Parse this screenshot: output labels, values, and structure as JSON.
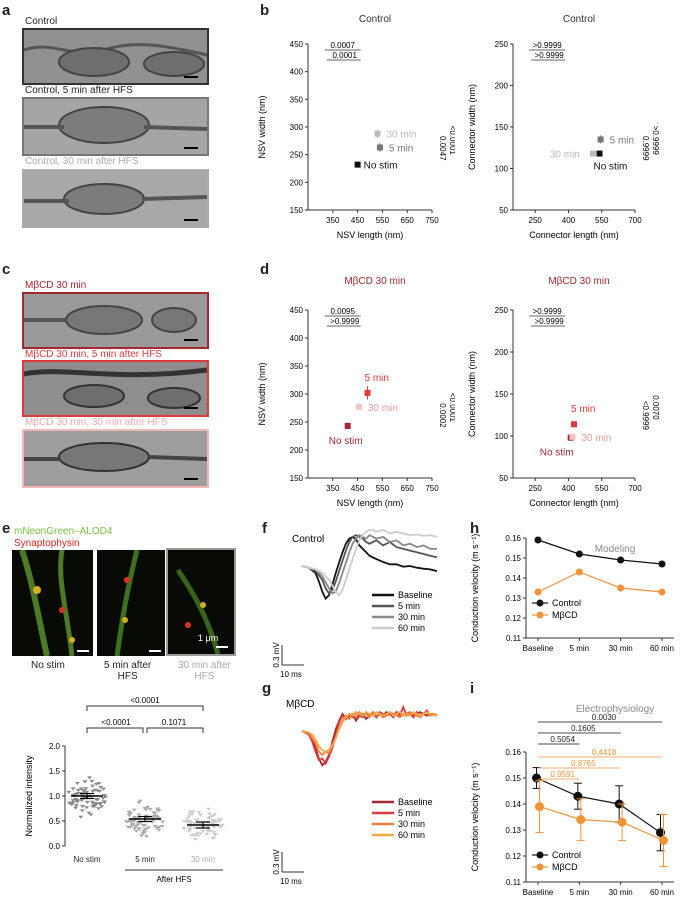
{
  "panels": {
    "a": "a",
    "b": "b",
    "c": "c",
    "d": "d",
    "e": "e",
    "f": "f",
    "g": "g",
    "h": "h",
    "i": "i"
  },
  "panel_a": {
    "labels": [
      "Control",
      "Control, 5 min after HFS",
      "Control, 30 min after HFS"
    ],
    "label_colors": [
      "#555555",
      "#666666",
      "#aaaaaa"
    ],
    "border_colors": [
      "#333333",
      "#777777",
      "#aaaaaa"
    ]
  },
  "panel_c": {
    "labels": [
      "MβCD 30 min",
      "MβCD 30 min, 5 min after HFS",
      "MβCD 30 min, 30 min after HFS"
    ],
    "label_colors": [
      "#a0282e",
      "#e03a3a",
      "#f0a8a8"
    ],
    "border_colors": [
      "#a0282e",
      "#e03a3a",
      "#f2b8b8"
    ]
  },
  "panel_e_images": {
    "legend": [
      "mNeonGreen–ALOD4",
      "Synaptophysin"
    ],
    "legend_colors": [
      "#7ac143",
      "#e02020"
    ],
    "captions": [
      "No stim",
      "5 min after\nHFS",
      "30 min after\nHFS"
    ],
    "caption_colors": [
      "#222222",
      "#222222",
      "#aaaaaa"
    ],
    "scale": "1 μm"
  },
  "chart_data": [
    {
      "id": "b-left",
      "type": "scatter",
      "title": "Control",
      "xlabel": "NSV length (nm)",
      "ylabel": "NSV width (nm)",
      "xlim": [
        250,
        750
      ],
      "ylim": [
        150,
        450
      ],
      "xticks": [
        350,
        450,
        550,
        650,
        750
      ],
      "yticks": [
        150,
        200,
        250,
        300,
        350,
        400,
        450
      ],
      "series": [
        {
          "name": "No stim",
          "x": 450,
          "y": 232,
          "xerr": 8,
          "yerr": 5,
          "color": "#111111"
        },
        {
          "name": "5 min",
          "x": 540,
          "y": 263,
          "xerr": 10,
          "yerr": 8,
          "color": "#777777"
        },
        {
          "name": "30 min",
          "x": 530,
          "y": 288,
          "xerr": 12,
          "yerr": 8,
          "color": "#bbbbbb"
        }
      ],
      "stats_top": [
        "0.0007",
        "0.0001"
      ],
      "stats_side": [
        "<0.0001",
        "0.0047"
      ]
    },
    {
      "id": "b-right",
      "type": "scatter",
      "title": "Control",
      "xlabel": "Connector length (nm)",
      "ylabel": "Connector width (nm)",
      "xlim": [
        150,
        700
      ],
      "ylim": [
        50,
        250
      ],
      "xticks": [
        250,
        400,
        550,
        700
      ],
      "yticks": [
        50,
        100,
        150,
        200,
        250
      ],
      "series": [
        {
          "name": "No stim",
          "x": 540,
          "y": 118,
          "xerr": 10,
          "yerr": 3,
          "color": "#111111"
        },
        {
          "name": "5 min",
          "x": 545,
          "y": 135,
          "xerr": 10,
          "yerr": 5,
          "color": "#777777"
        },
        {
          "name": "30 min",
          "x": 510,
          "y": 118,
          "xerr": 10,
          "yerr": 3,
          "color": "#bbbbbb"
        }
      ],
      "stats_top": [
        ">0.9999",
        ">0.9999"
      ],
      "stats_side": [
        ">0.9999",
        "0.9999"
      ]
    },
    {
      "id": "d-left",
      "type": "scatter",
      "title": "MβCD 30 min",
      "xlabel": "NSV length (nm)",
      "ylabel": "NSV width (nm)",
      "xlim": [
        250,
        750
      ],
      "ylim": [
        150,
        450
      ],
      "xticks": [
        350,
        450,
        550,
        650,
        750
      ],
      "yticks": [
        150,
        200,
        250,
        300,
        350,
        400,
        450
      ],
      "series": [
        {
          "name": "No stim",
          "x": 410,
          "y": 243,
          "xerr": 8,
          "yerr": 6,
          "color": "#a0282e"
        },
        {
          "name": "5 min",
          "x": 490,
          "y": 302,
          "xerr": 12,
          "yerr": 12,
          "color": "#e03a3a"
        },
        {
          "name": "30 min",
          "x": 455,
          "y": 277,
          "xerr": 8,
          "yerr": 6,
          "color": "#f2c4c4"
        }
      ],
      "stats_top": [
        "0.0095",
        ">0.9999"
      ],
      "stats_side": [
        "<0.0001",
        "0.0002"
      ]
    },
    {
      "id": "d-right",
      "type": "scatter",
      "title": "MβCD 30 min",
      "xlabel": "Connector length (nm)",
      "ylabel": "Connector width (nm)",
      "xlim": [
        150,
        700
      ],
      "ylim": [
        50,
        250
      ],
      "xticks": [
        250,
        400,
        550,
        700
      ],
      "yticks": [
        50,
        100,
        150,
        200,
        250
      ],
      "series": [
        {
          "name": "No stim",
          "x": 410,
          "y": 98,
          "xerr": 8,
          "yerr": 3,
          "color": "#a0282e"
        },
        {
          "name": "5 min",
          "x": 425,
          "y": 114,
          "xerr": 10,
          "yerr": 4,
          "color": "#e03a3a"
        },
        {
          "name": "30 min",
          "x": 418,
          "y": 99,
          "xerr": 8,
          "yerr": 3,
          "color": "#f2c4c4"
        }
      ],
      "stats_top": [
        ">0.9999",
        ">0.9999"
      ],
      "stats_side": [
        "0.0070",
        "<0.9999"
      ]
    },
    {
      "id": "e-bottom",
      "type": "scatter",
      "ylabel": "Normalized intensity",
      "ylim": [
        0,
        2.0
      ],
      "yticks": [
        0,
        0.5,
        1.0,
        1.5,
        2.0
      ],
      "categories": [
        "No stim",
        "5 min",
        "30 min"
      ],
      "category_colors": [
        "#888888",
        "#aaaaaa",
        "#cccccc"
      ],
      "label_colors": [
        "#222222",
        "#222222",
        "#aaaaaa"
      ],
      "means": [
        1.0,
        0.54,
        0.42
      ],
      "sems": [
        0.05,
        0.05,
        0.06
      ],
      "group_label": "After HFS",
      "comparisons": [
        {
          "from": 0,
          "to": 2,
          "p": "<0.0001"
        },
        {
          "from": 0,
          "to": 1,
          "p": "<0.0001"
        },
        {
          "from": 1,
          "to": 2,
          "p": "0.1071"
        }
      ]
    },
    {
      "id": "f",
      "type": "line",
      "title": "Control",
      "scale_y": "0.3 mV",
      "scale_x": "10 ms",
      "series": [
        {
          "name": "Baseline",
          "color": "#111111",
          "x": [
            0,
            2,
            4,
            5,
            6,
            7,
            8,
            9,
            10,
            11,
            12,
            13,
            14,
            15,
            16,
            17,
            18,
            19,
            20,
            22,
            24,
            26,
            28,
            30,
            32,
            34,
            36,
            38,
            40
          ],
          "y": [
            0,
            -0.05,
            -0.2,
            -0.45,
            -0.75,
            -0.95,
            -0.85,
            -0.55,
            -0.2,
            0.1,
            0.4,
            0.65,
            0.8,
            0.85,
            0.78,
            0.6,
            0.5,
            0.4,
            0.3,
            0.2,
            0.12,
            0.05,
            0.05,
            -0.02,
            0.0,
            -0.05,
            -0.08,
            -0.1,
            -0.15
          ]
        },
        {
          "name": "5 min",
          "color": "#555555",
          "x": [
            0,
            2,
            4,
            6,
            7,
            8,
            9,
            10,
            11,
            12,
            13,
            14,
            15,
            16,
            17,
            18,
            19,
            20,
            22,
            24,
            26,
            28,
            30,
            32,
            34,
            36,
            38,
            40
          ],
          "y": [
            0,
            -0.05,
            -0.15,
            -0.4,
            -0.65,
            -0.8,
            -0.7,
            -0.45,
            -0.15,
            0.15,
            0.45,
            0.7,
            0.85,
            0.9,
            0.85,
            0.8,
            0.7,
            0.65,
            0.75,
            0.6,
            0.7,
            0.55,
            0.5,
            0.45,
            0.4,
            0.35,
            0.3,
            0.25
          ]
        },
        {
          "name": "30 min",
          "color": "#888888",
          "x": [
            0,
            2,
            4,
            6,
            8,
            9,
            10,
            11,
            12,
            13,
            14,
            15,
            16,
            17,
            18,
            19,
            20,
            22,
            24,
            26,
            28,
            30,
            32,
            34,
            36,
            38,
            40
          ],
          "y": [
            0,
            -0.05,
            -0.1,
            -0.3,
            -0.65,
            -0.8,
            -0.75,
            -0.5,
            -0.2,
            0.1,
            0.4,
            0.65,
            0.8,
            0.9,
            0.85,
            0.8,
            0.9,
            0.8,
            0.85,
            0.7,
            0.75,
            0.6,
            0.65,
            0.55,
            0.6,
            0.5,
            0.5
          ]
        },
        {
          "name": "60 min",
          "color": "#cccccc",
          "x": [
            0,
            2,
            4,
            6,
            8,
            10,
            11,
            12,
            13,
            14,
            15,
            16,
            17,
            18,
            19,
            20,
            21,
            22,
            24,
            26,
            28,
            30,
            32,
            34,
            36,
            38,
            40
          ],
          "y": [
            0,
            -0.05,
            -0.1,
            -0.2,
            -0.4,
            -0.75,
            -0.85,
            -0.7,
            -0.4,
            -0.1,
            0.2,
            0.5,
            0.75,
            0.9,
            1.0,
            1.05,
            1.05,
            1.0,
            1.05,
            0.95,
            1.0,
            0.95,
            0.9,
            0.92,
            0.88,
            0.9,
            0.85
          ]
        }
      ]
    },
    {
      "id": "g",
      "type": "line",
      "title": "MβCD",
      "scale_y": "0.3 mV",
      "scale_x": "10 ms",
      "series": [
        {
          "name": "Baseline",
          "color": "#a0282e",
          "x": [
            0,
            2,
            3,
            4,
            5,
            6,
            7,
            8,
            9,
            10,
            11,
            12,
            13,
            14,
            15,
            16,
            17,
            18,
            19,
            20,
            21,
            22,
            23,
            24,
            25,
            26,
            27,
            28,
            29,
            30,
            31,
            32,
            33,
            34,
            35,
            36,
            37,
            38,
            39,
            40
          ],
          "y": [
            0,
            -0.05,
            -0.2,
            -0.5,
            -0.8,
            -1.0,
            -0.9,
            -0.7,
            -0.3,
            0.05,
            0.3,
            0.5,
            0.35,
            0.45,
            0.5,
            0.3,
            0.45,
            0.5,
            0.35,
            0.45,
            0.55,
            0.4,
            0.5,
            0.45,
            0.55,
            0.5,
            0.45,
            0.55,
            0.5,
            0.45,
            0.5,
            0.55,
            0.45,
            0.5,
            0.55,
            0.5,
            0.45,
            0.5,
            0.5,
            0.45
          ]
        },
        {
          "name": "5 min",
          "color": "#e03a3a",
          "x": [
            0,
            2,
            3,
            4,
            5,
            6,
            7,
            8,
            9,
            10,
            11,
            12,
            13,
            14,
            15,
            16,
            17,
            18,
            19,
            20,
            21,
            22,
            23,
            24,
            25,
            26,
            27,
            28,
            29,
            30,
            31,
            32,
            33,
            34,
            35,
            36,
            37,
            38,
            39,
            40
          ],
          "y": [
            0,
            -0.1,
            -0.3,
            -0.6,
            -0.85,
            -0.8,
            -0.95,
            -0.75,
            -0.5,
            -0.1,
            0.25,
            0.45,
            0.35,
            0.5,
            0.4,
            0.55,
            0.45,
            0.4,
            0.55,
            0.45,
            0.5,
            0.4,
            0.55,
            0.5,
            0.45,
            0.5,
            0.4,
            0.55,
            0.45,
            0.7,
            0.45,
            0.5,
            0.4,
            0.55,
            0.45,
            0.5,
            0.6,
            0.45,
            0.5,
            0.45
          ]
        },
        {
          "name": "30 min",
          "color": "#f07e3a",
          "x": [
            0,
            2,
            3,
            4,
            5,
            6,
            7,
            8,
            9,
            10,
            11,
            12,
            13,
            14,
            15,
            16,
            17,
            18,
            19,
            20,
            21,
            22,
            23,
            24,
            25,
            26,
            27,
            28,
            29,
            30,
            31,
            32,
            33,
            34,
            35,
            36,
            37,
            38,
            39,
            40
          ],
          "y": [
            0,
            -0.05,
            -0.2,
            -0.35,
            -0.6,
            -0.7,
            -0.6,
            -0.65,
            -0.45,
            -0.2,
            0.1,
            0.3,
            0.45,
            0.35,
            0.5,
            0.4,
            0.55,
            0.45,
            0.5,
            0.4,
            0.55,
            0.45,
            0.5,
            0.4,
            0.45,
            0.55,
            0.5,
            0.45,
            0.4,
            0.5,
            0.45,
            0.55,
            0.5,
            0.45,
            0.4,
            0.5,
            0.55,
            0.45,
            0.5,
            0.45
          ]
        },
        {
          "name": "60 min",
          "color": "#f0a84a",
          "x": [
            0,
            2,
            3,
            4,
            5,
            6,
            7,
            8,
            9,
            10,
            11,
            12,
            13,
            14,
            15,
            16,
            17,
            18,
            19,
            20,
            21,
            22,
            23,
            24,
            25,
            26,
            27,
            28,
            29,
            30,
            31,
            32,
            33,
            34,
            35,
            36,
            37,
            38,
            39,
            40
          ],
          "y": [
            0,
            -0.05,
            -0.1,
            -0.25,
            -0.45,
            -0.55,
            -0.6,
            -0.55,
            -0.4,
            -0.2,
            0.05,
            0.25,
            0.4,
            0.5,
            0.45,
            0.55,
            0.5,
            0.45,
            0.55,
            0.5,
            0.45,
            0.55,
            0.5,
            0.45,
            0.5,
            0.55,
            0.45,
            0.5,
            0.55,
            0.45,
            0.5,
            0.45,
            0.55,
            0.5,
            0.45,
            0.5,
            0.55,
            0.5,
            0.45,
            0.5
          ]
        }
      ]
    },
    {
      "id": "h",
      "type": "line",
      "title": "Modeling",
      "ylabel": "Conduction velocity (m s⁻¹)",
      "categories": [
        "Baseline",
        "5 min",
        "30 min",
        "60 min"
      ],
      "ylim": [
        0.11,
        0.16
      ],
      "yticks": [
        0.11,
        0.12,
        0.13,
        0.14,
        0.15,
        0.16
      ],
      "series": [
        {
          "name": "Control",
          "color": "#111111",
          "values": [
            0.159,
            0.152,
            0.149,
            0.147
          ]
        },
        {
          "name": "MβCD",
          "color": "#f39237",
          "values": [
            0.133,
            0.143,
            0.135,
            0.133
          ]
        }
      ]
    },
    {
      "id": "i",
      "type": "line",
      "title": "Electrophysiology",
      "ylabel": "Conduction velocity (m s⁻¹)",
      "categories": [
        "Baseline",
        "5 min",
        "30 min",
        "60 min"
      ],
      "ylim": [
        0.11,
        0.16
      ],
      "yticks": [
        0.11,
        0.12,
        0.13,
        0.14,
        0.15,
        0.16
      ],
      "series": [
        {
          "name": "Control",
          "color": "#111111",
          "values": [
            0.15,
            0.143,
            0.14,
            0.129
          ],
          "errors": [
            0.004,
            0.005,
            0.007,
            0.007
          ]
        },
        {
          "name": "MβCD",
          "color": "#f39237",
          "values": [
            0.139,
            0.134,
            0.133,
            0.126
          ],
          "errors": [
            0.01,
            0.008,
            0.007,
            0.01
          ]
        }
      ],
      "comparisons": [
        {
          "series": 0,
          "to": 3,
          "p": "0.0030"
        },
        {
          "series": 0,
          "to": 2,
          "p": "0.1605"
        },
        {
          "series": 0,
          "to": 1,
          "p": "0.5054"
        },
        {
          "series": 1,
          "to": 3,
          "p": "0.4418"
        },
        {
          "series": 1,
          "to": 2,
          "p": "0.8765"
        },
        {
          "series": 1,
          "to": 1,
          "p": "0.9591"
        }
      ]
    }
  ]
}
